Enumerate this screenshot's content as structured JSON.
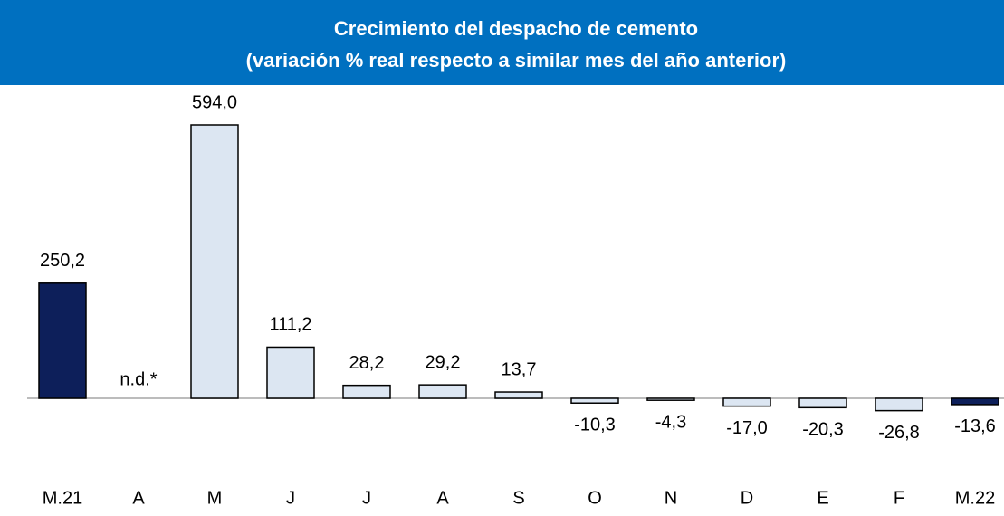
{
  "chart_data": {
    "type": "bar",
    "title": "Crecimiento del despacho de cemento",
    "subtitle": "(variación % real respecto a similar mes del año anterior)",
    "categories": [
      "M.21",
      "A",
      "M",
      "J",
      "J",
      "A",
      "S",
      "O",
      "N",
      "D",
      "E",
      "F",
      "M.22"
    ],
    "values": [
      250.2,
      null,
      594.0,
      111.2,
      28.2,
      29.2,
      13.7,
      -10.3,
      -4.3,
      -17.0,
      -20.3,
      -26.8,
      -13.6
    ],
    "value_labels": [
      "250,2",
      "n.d.*",
      "594,0",
      "111,2",
      "28,2",
      "29,2",
      "13,7",
      "-10,3",
      "-4,3",
      "-17,0",
      "-20,3",
      "-26,8",
      "-13,6"
    ],
    "colors": [
      "#0d1f5a",
      "#dce6f2",
      "#dce6f2",
      "#dce6f2",
      "#dce6f2",
      "#dce6f2",
      "#dce6f2",
      "#dce6f2",
      "#dce6f2",
      "#dce6f2",
      "#dce6f2",
      "#dce6f2",
      "#0d1f5a"
    ],
    "edge_color": "#000000",
    "banner_color": "#0070c0"
  }
}
